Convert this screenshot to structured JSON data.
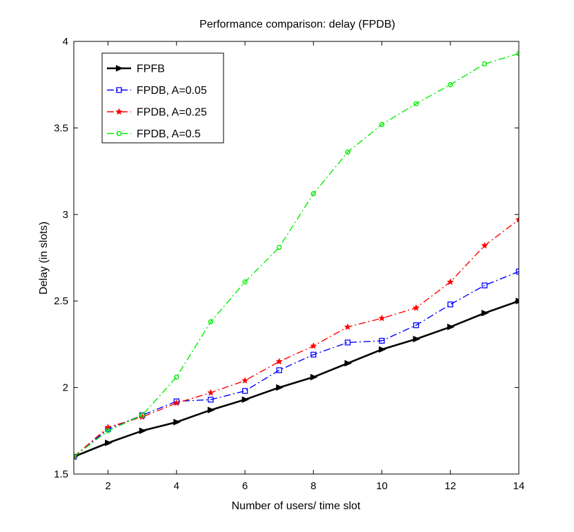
{
  "chart_data": {
    "type": "line",
    "title": "Performance comparison: delay (FPDB)",
    "xlabel": "Number of users/ time slot",
    "ylabel": "Delay (in slots)",
    "xlim": [
      1,
      14
    ],
    "ylim": [
      1.5,
      4
    ],
    "xticks": [
      2,
      4,
      6,
      8,
      10,
      12,
      14
    ],
    "yticks": [
      1.5,
      2,
      2.5,
      3,
      3.5,
      4
    ],
    "xtick_labels": [
      "2",
      "4",
      "6",
      "8",
      "10",
      "12",
      "14"
    ],
    "ytick_labels": [
      "1.5",
      "2",
      "2.5",
      "3",
      "3.5",
      "4"
    ],
    "grid": false,
    "legend_position": "top-left",
    "x": [
      1,
      2,
      3,
      4,
      5,
      6,
      7,
      8,
      9,
      10,
      11,
      12,
      13,
      14
    ],
    "series": [
      {
        "name": "FPFB",
        "color": "#000000",
        "line_style": "solid",
        "marker": "triangle-right",
        "values": [
          1.6,
          1.68,
          1.75,
          1.8,
          1.87,
          1.93,
          2.0,
          2.06,
          2.14,
          2.22,
          2.28,
          2.35,
          2.43,
          2.5
        ]
      },
      {
        "name": "FPDB, A=0.05",
        "color": "#0000ff",
        "line_style": "dashdot",
        "marker": "square",
        "values": [
          1.6,
          1.76,
          1.84,
          1.92,
          1.93,
          1.98,
          2.1,
          2.19,
          2.26,
          2.27,
          2.36,
          2.48,
          2.59,
          2.67
        ]
      },
      {
        "name": "FPDB, A=0.25",
        "color": "#ff0000",
        "line_style": "dashdot",
        "marker": "star",
        "values": [
          1.6,
          1.77,
          1.83,
          1.91,
          1.97,
          2.04,
          2.15,
          2.24,
          2.35,
          2.4,
          2.46,
          2.61,
          2.82,
          2.97
        ]
      },
      {
        "name": "FPDB, A=0.5",
        "color": "#00ee00",
        "line_style": "dashdot",
        "marker": "circle",
        "values": [
          1.6,
          1.75,
          1.84,
          2.06,
          2.38,
          2.61,
          2.81,
          3.12,
          3.36,
          3.52,
          3.64,
          3.75,
          3.87,
          3.93
        ]
      }
    ]
  }
}
